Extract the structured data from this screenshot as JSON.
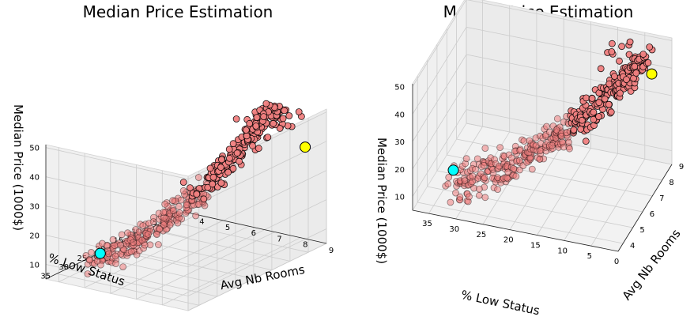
{
  "chart_data": [
    {
      "type": "scatter3d",
      "title": "Median Price Estimation",
      "xlabel": "% Low Status",
      "ylabel": "Avg Nb Rooms",
      "zlabel": "Median Price (1000$)",
      "xticks": [
        "0",
        "5",
        "10",
        "15",
        "20",
        "25",
        "30",
        "35"
      ],
      "yticks": [
        "4",
        "5",
        "6",
        "7",
        "8",
        "9"
      ],
      "zticks": [
        "10",
        "20",
        "30",
        "40",
        "50"
      ],
      "grid": true,
      "point_color": "#f08080",
      "highlight_points": [
        {
          "lstat": 33.0,
          "rm": 4.9,
          "price": 13.5,
          "color": "#00ffff"
        },
        {
          "lstat": 3.0,
          "rm": 8.6,
          "price": 39.0,
          "color": "#ffff00"
        }
      ]
    },
    {
      "type": "scatter3d",
      "title": "Median Price Estimation",
      "xlabel": "% Low Status",
      "ylabel": "Avg Nb Rooms",
      "zlabel": "Median Price (1000$)",
      "xticks": [
        "0",
        "5",
        "10",
        "15",
        "20",
        "25",
        "30",
        "35"
      ],
      "yticks": [
        "4",
        "5",
        "6",
        "7",
        "8",
        "9"
      ],
      "zticks": [
        "10",
        "20",
        "30",
        "40",
        "50"
      ],
      "grid": true,
      "point_color": "#f08080",
      "highlight_points": [
        {
          "lstat": 33.0,
          "rm": 4.9,
          "price": 13.5,
          "color": "#00ffff"
        },
        {
          "lstat": 3.0,
          "rm": 8.6,
          "price": 39.0,
          "color": "#ffff00"
        }
      ]
    }
  ]
}
